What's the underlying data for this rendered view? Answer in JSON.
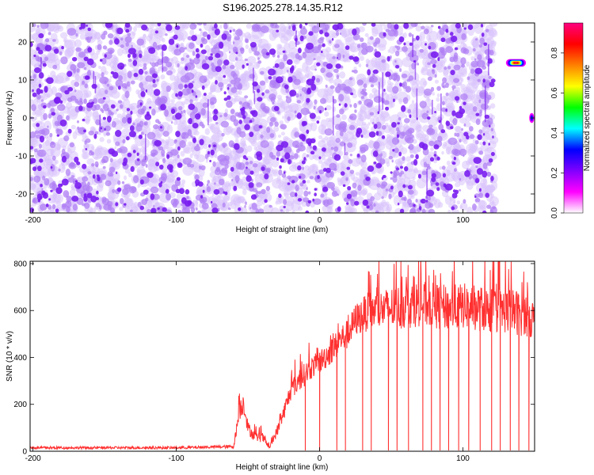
{
  "title": "S196.2025.278.14.35.R12",
  "chart_data": [
    {
      "type": "heatmap",
      "xlabel": "Height of straight line (km)",
      "ylabel": "Frequency (Hz)",
      "xlim": [
        -202,
        150
      ],
      "ylim": [
        -25,
        25
      ],
      "xticks": [
        -200,
        -100,
        0,
        100
      ],
      "yticks": [
        -20,
        -10,
        0,
        10,
        20
      ],
      "colorbar": {
        "label": "Normalized spectral amplitude",
        "range": [
          0,
          0.95
        ],
        "ticks": [
          "0.0",
          "0.2",
          "0.4",
          "0.6",
          "0.8"
        ],
        "colormap": [
          "#ffffff",
          "#ff00ff",
          "#8000ff",
          "#0000ff",
          "#00ffff",
          "#00ff00",
          "#ffff00",
          "#ff8000",
          "#ff0000",
          "#ff0080"
        ]
      },
      "noise_region": {
        "x": [
          -202,
          122
        ],
        "y": [
          -25,
          25
        ],
        "typical_amplitude": 0.02
      },
      "features": [
        {
          "x": [
            130,
            144
          ],
          "y": [
            13.5,
            15.5
          ],
          "peak_amplitude": 0.95
        },
        {
          "x": [
            146,
            150
          ],
          "y": [
            -1.5,
            1.5
          ],
          "peak_amplitude": 0.4
        }
      ]
    },
    {
      "type": "line",
      "xlabel": "Height of straight line (km)",
      "ylabel": "SNR (10 * v/v)",
      "xlim": [
        -202,
        150
      ],
      "ylim": [
        0,
        810
      ],
      "xticks": [
        -200,
        -100,
        0,
        100
      ],
      "yticks": [
        0,
        200,
        400,
        600,
        800
      ],
      "color": "#ff3030",
      "series": [
        {
          "name": "SNR",
          "x": [
            -202,
            -100,
            -60,
            -56,
            -53,
            -50,
            -45,
            -40,
            -35,
            -32,
            -28,
            -20,
            -15,
            -10,
            -5,
            0,
            5,
            10,
            15,
            20,
            25,
            30,
            35,
            40,
            50,
            60,
            70,
            80,
            90,
            100,
            110,
            120,
            130,
            140,
            145,
            150
          ],
          "y": [
            15,
            15,
            20,
            170,
            210,
            100,
            60,
            60,
            15,
            55,
            110,
            260,
            300,
            330,
            360,
            380,
            410,
            440,
            480,
            500,
            560,
            580,
            600,
            600,
            610,
            620,
            630,
            620,
            610,
            620,
            610,
            600,
            600,
            590,
            580,
            560
          ],
          "spread": [
            8,
            8,
            10,
            60,
            70,
            40,
            30,
            30,
            8,
            25,
            40,
            60,
            70,
            70,
            70,
            70,
            80,
            80,
            90,
            90,
            100,
            110,
            120,
            120,
            130,
            140,
            140,
            140,
            140,
            140,
            140,
            140,
            140,
            140,
            140,
            120
          ]
        }
      ],
      "dropouts_x": [
        -10,
        0,
        12,
        18,
        30,
        36,
        48,
        54,
        62,
        72,
        78,
        84,
        90,
        97,
        104,
        112,
        120,
        126,
        133,
        139,
        146
      ]
    }
  ]
}
